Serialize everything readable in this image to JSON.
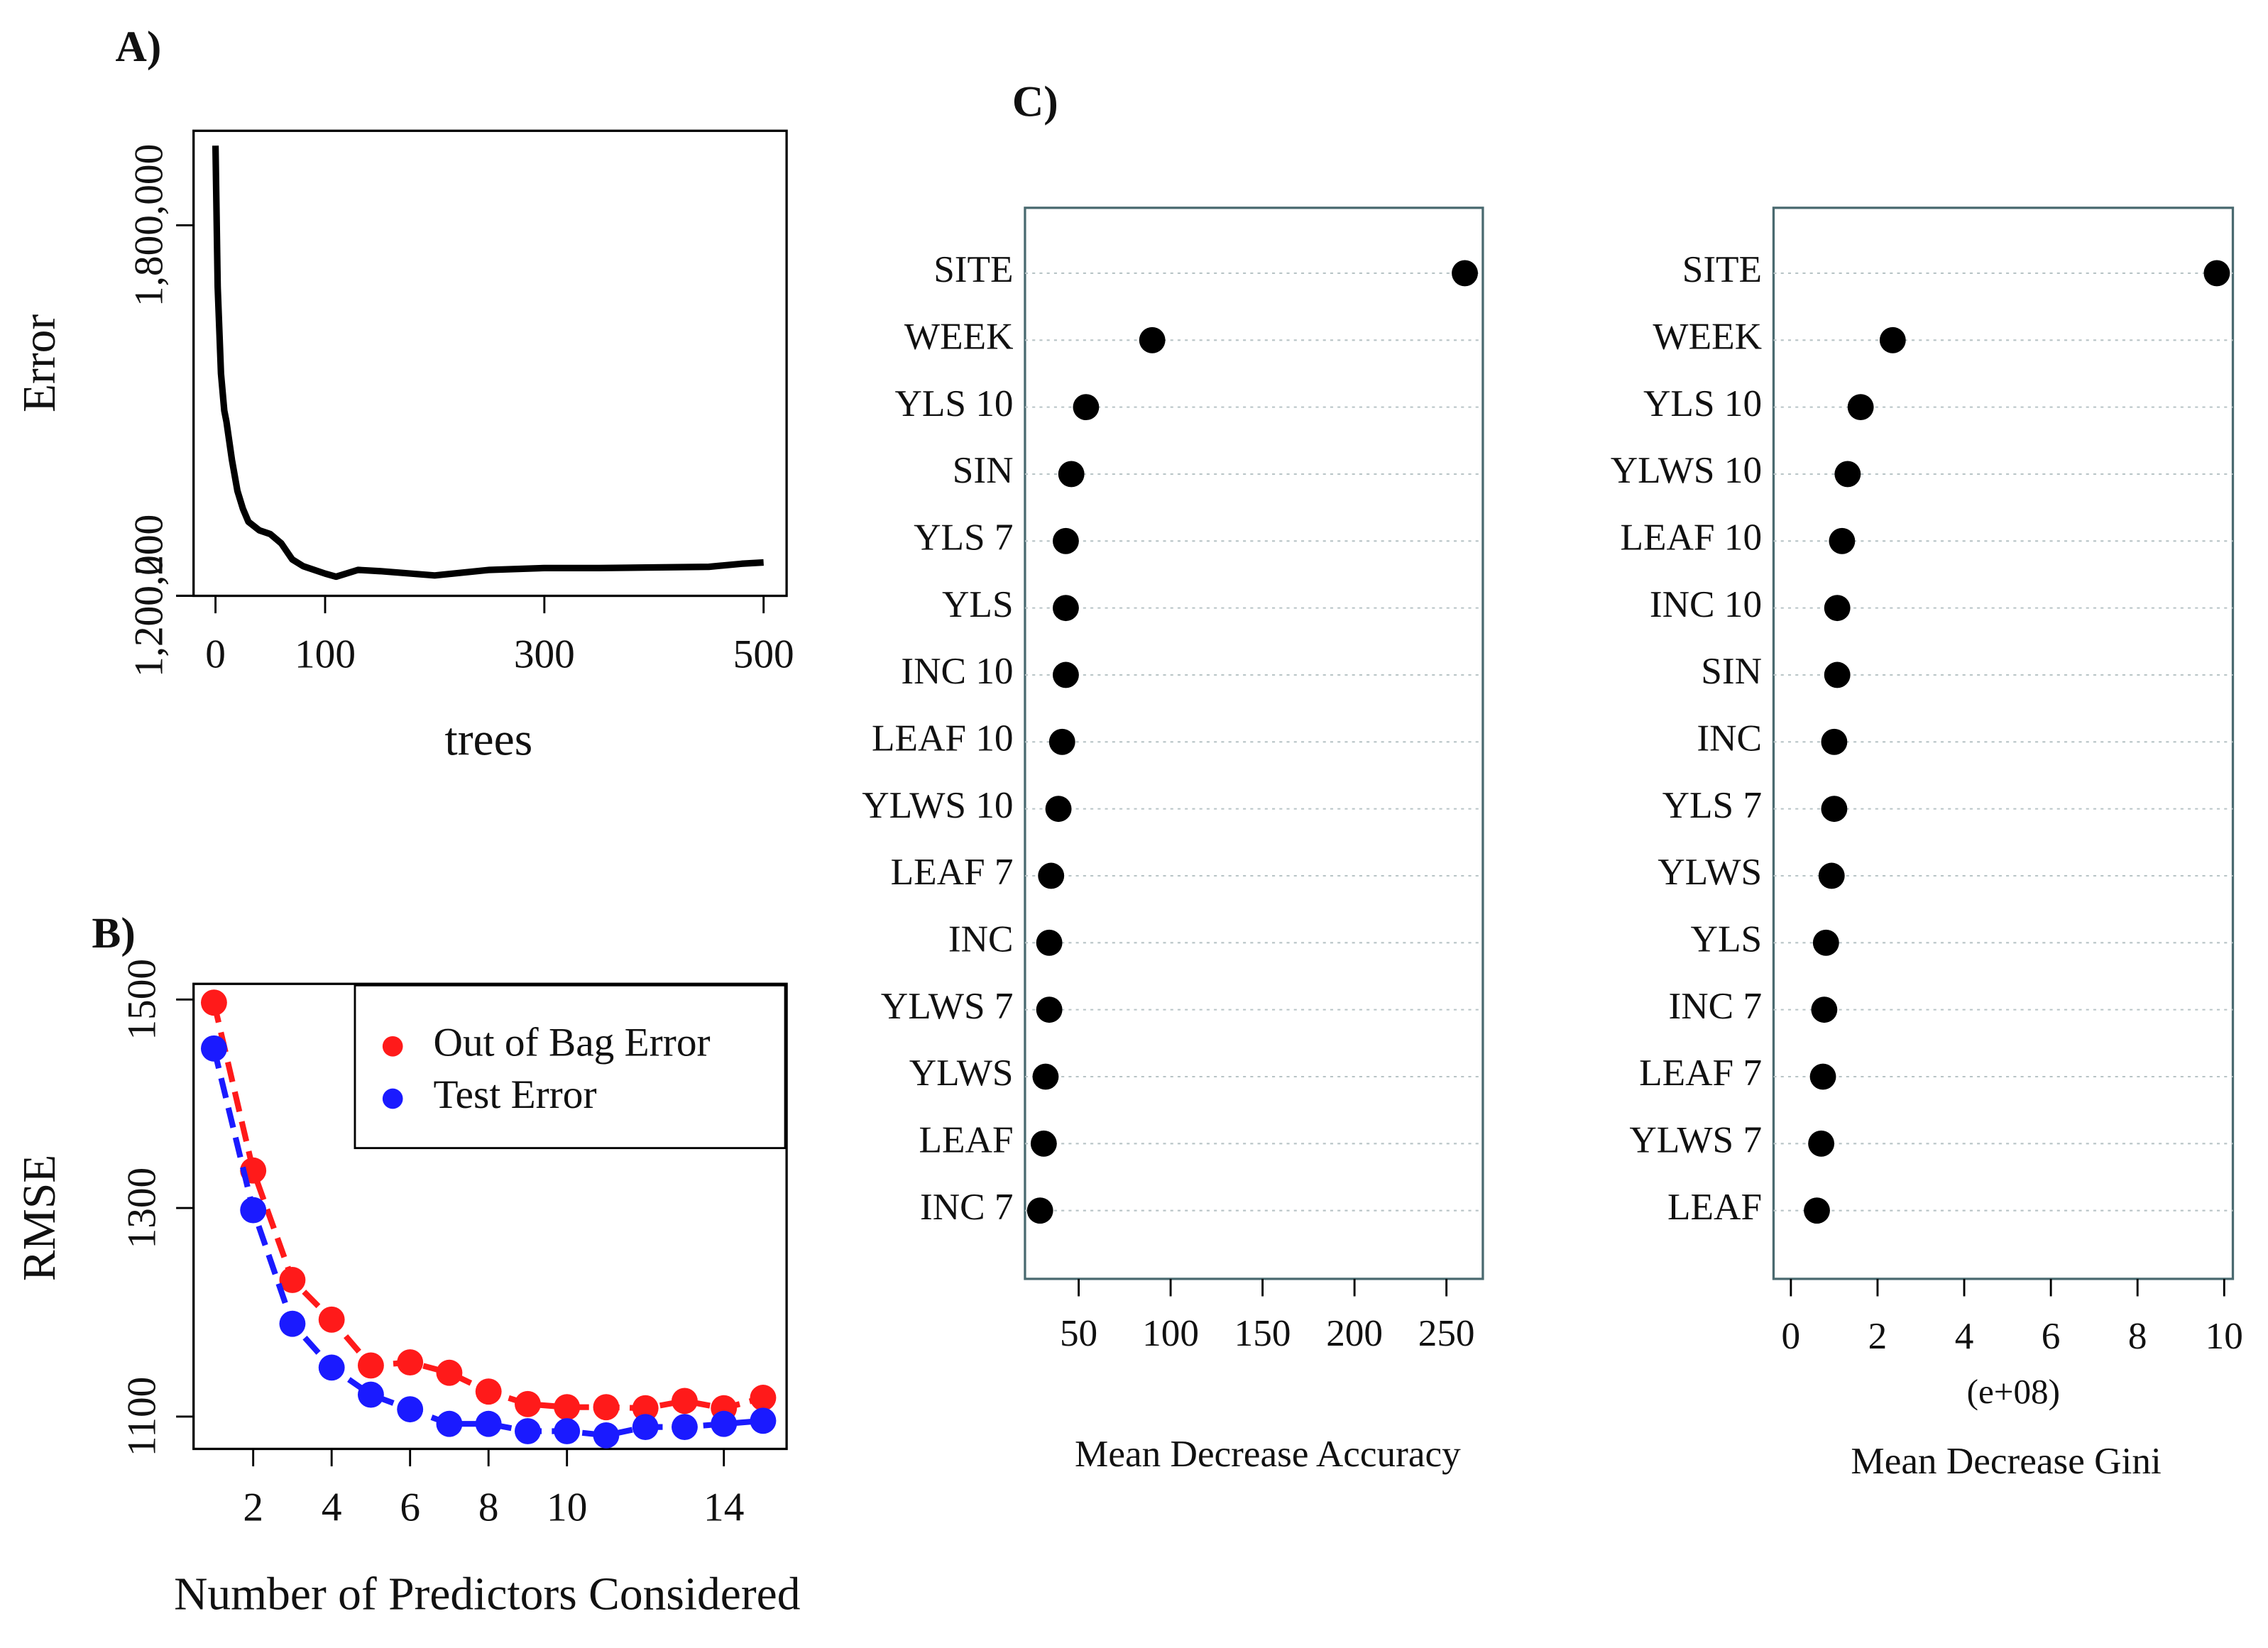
{
  "chart_data": [
    {
      "type": "line",
      "panel_label": "A)",
      "x_label": "trees",
      "y_label": "Error",
      "x": [
        0,
        2,
        5,
        8,
        10,
        15,
        20,
        25,
        30,
        40,
        50,
        60,
        70,
        80,
        100,
        110,
        130,
        150,
        200,
        250,
        300,
        350,
        400,
        450,
        480,
        500
      ],
      "series": [
        {
          "name": "Error",
          "color": "#000000",
          "values": [
            1929000,
            1700000,
            1560000,
            1500000,
            1482000,
            1420000,
            1370000,
            1341000,
            1320000,
            1306000,
            1300000,
            1285000,
            1259000,
            1248000,
            1236000,
            1231000,
            1242000,
            1240000,
            1233000,
            1242000,
            1245000,
            1245000,
            1246000,
            1247000,
            1252000,
            1254000
          ]
        }
      ],
      "xlim": [
        -20,
        521
      ],
      "ylim": [
        1200000,
        1953000
      ],
      "xticks": [
        0,
        100,
        300,
        500
      ],
      "yticks": [
        {
          "value": 1800000,
          "label": "1,800,000"
        },
        {
          "value": 1200200,
          "label": "1,200,200"
        },
        {
          "value": 1200000,
          "label": "1,200,000"
        }
      ]
    },
    {
      "type": "line",
      "panel_label": "B)",
      "x_label": "Number of Predictors Considered",
      "y_label": "RMSE",
      "markers": true,
      "dashed": true,
      "legend": "top-right",
      "x": [
        1,
        2,
        3,
        4,
        5,
        6,
        7,
        8,
        9,
        10,
        11,
        12,
        13,
        14,
        15
      ],
      "series": [
        {
          "name": "Out of Bag Error",
          "color": "#ff1a1a",
          "values": [
            1497,
            1336,
            1231,
            1193,
            1149,
            1152,
            1142,
            1124,
            1112,
            1109,
            1109,
            1108,
            1115,
            1108,
            1118
          ]
        },
        {
          "name": "Test Error",
          "color": "#1a1aff",
          "values": [
            1453,
            1298,
            1189,
            1147,
            1121,
            1107,
            1093,
            1093,
            1086,
            1086,
            1082,
            1090,
            1090,
            1093,
            1096
          ]
        }
      ],
      "xlim": [
        0.48,
        15.6
      ],
      "ylim": [
        1069,
        1515
      ],
      "xticks": [
        2,
        4,
        6,
        8,
        10,
        14
      ],
      "yticks": [
        1100,
        1300,
        1500
      ]
    },
    {
      "type": "dot",
      "panel_label": "C)",
      "x_label": "Mean Decrease Accuracy",
      "color": "#000000",
      "categories": [
        "SITE",
        "WEEK",
        "YLS 10",
        "SIN",
        "YLS 7",
        "YLS",
        "INC 10",
        "LEAF 10",
        "YLWS 10",
        "LEAF 7",
        "INC",
        "YLWS 7",
        "YLWS",
        "LEAF",
        "INC 7"
      ],
      "values": [
        260,
        90,
        54,
        46,
        43,
        43,
        43,
        41,
        39,
        35,
        34,
        34,
        32,
        31,
        29
      ],
      "xlim": [
        20.8,
        269.8
      ],
      "xticks": [
        50,
        100,
        150,
        200,
        250
      ],
      "grid": true
    },
    {
      "type": "dot",
      "x_label": "Mean Decrease Gini",
      "x_unit": "(e+08)",
      "color": "#000000",
      "categories": [
        "SITE",
        "WEEK",
        "YLS 10",
        "YLWS 10",
        "LEAF 10",
        "INC 10",
        "SIN",
        "INC",
        "YLS 7",
        "YLWS",
        "YLS",
        "INC 7",
        "LEAF 7",
        "YLWS 7",
        "LEAF"
      ],
      "values": [
        9.83,
        2.35,
        1.61,
        1.31,
        1.18,
        1.07,
        1.07,
        1.0,
        1.0,
        0.94,
        0.81,
        0.77,
        0.74,
        0.7,
        0.6
      ],
      "xlim": [
        -0.4,
        10.2
      ],
      "xticks": [
        0,
        2,
        4,
        6,
        8,
        10
      ],
      "grid": true
    }
  ]
}
